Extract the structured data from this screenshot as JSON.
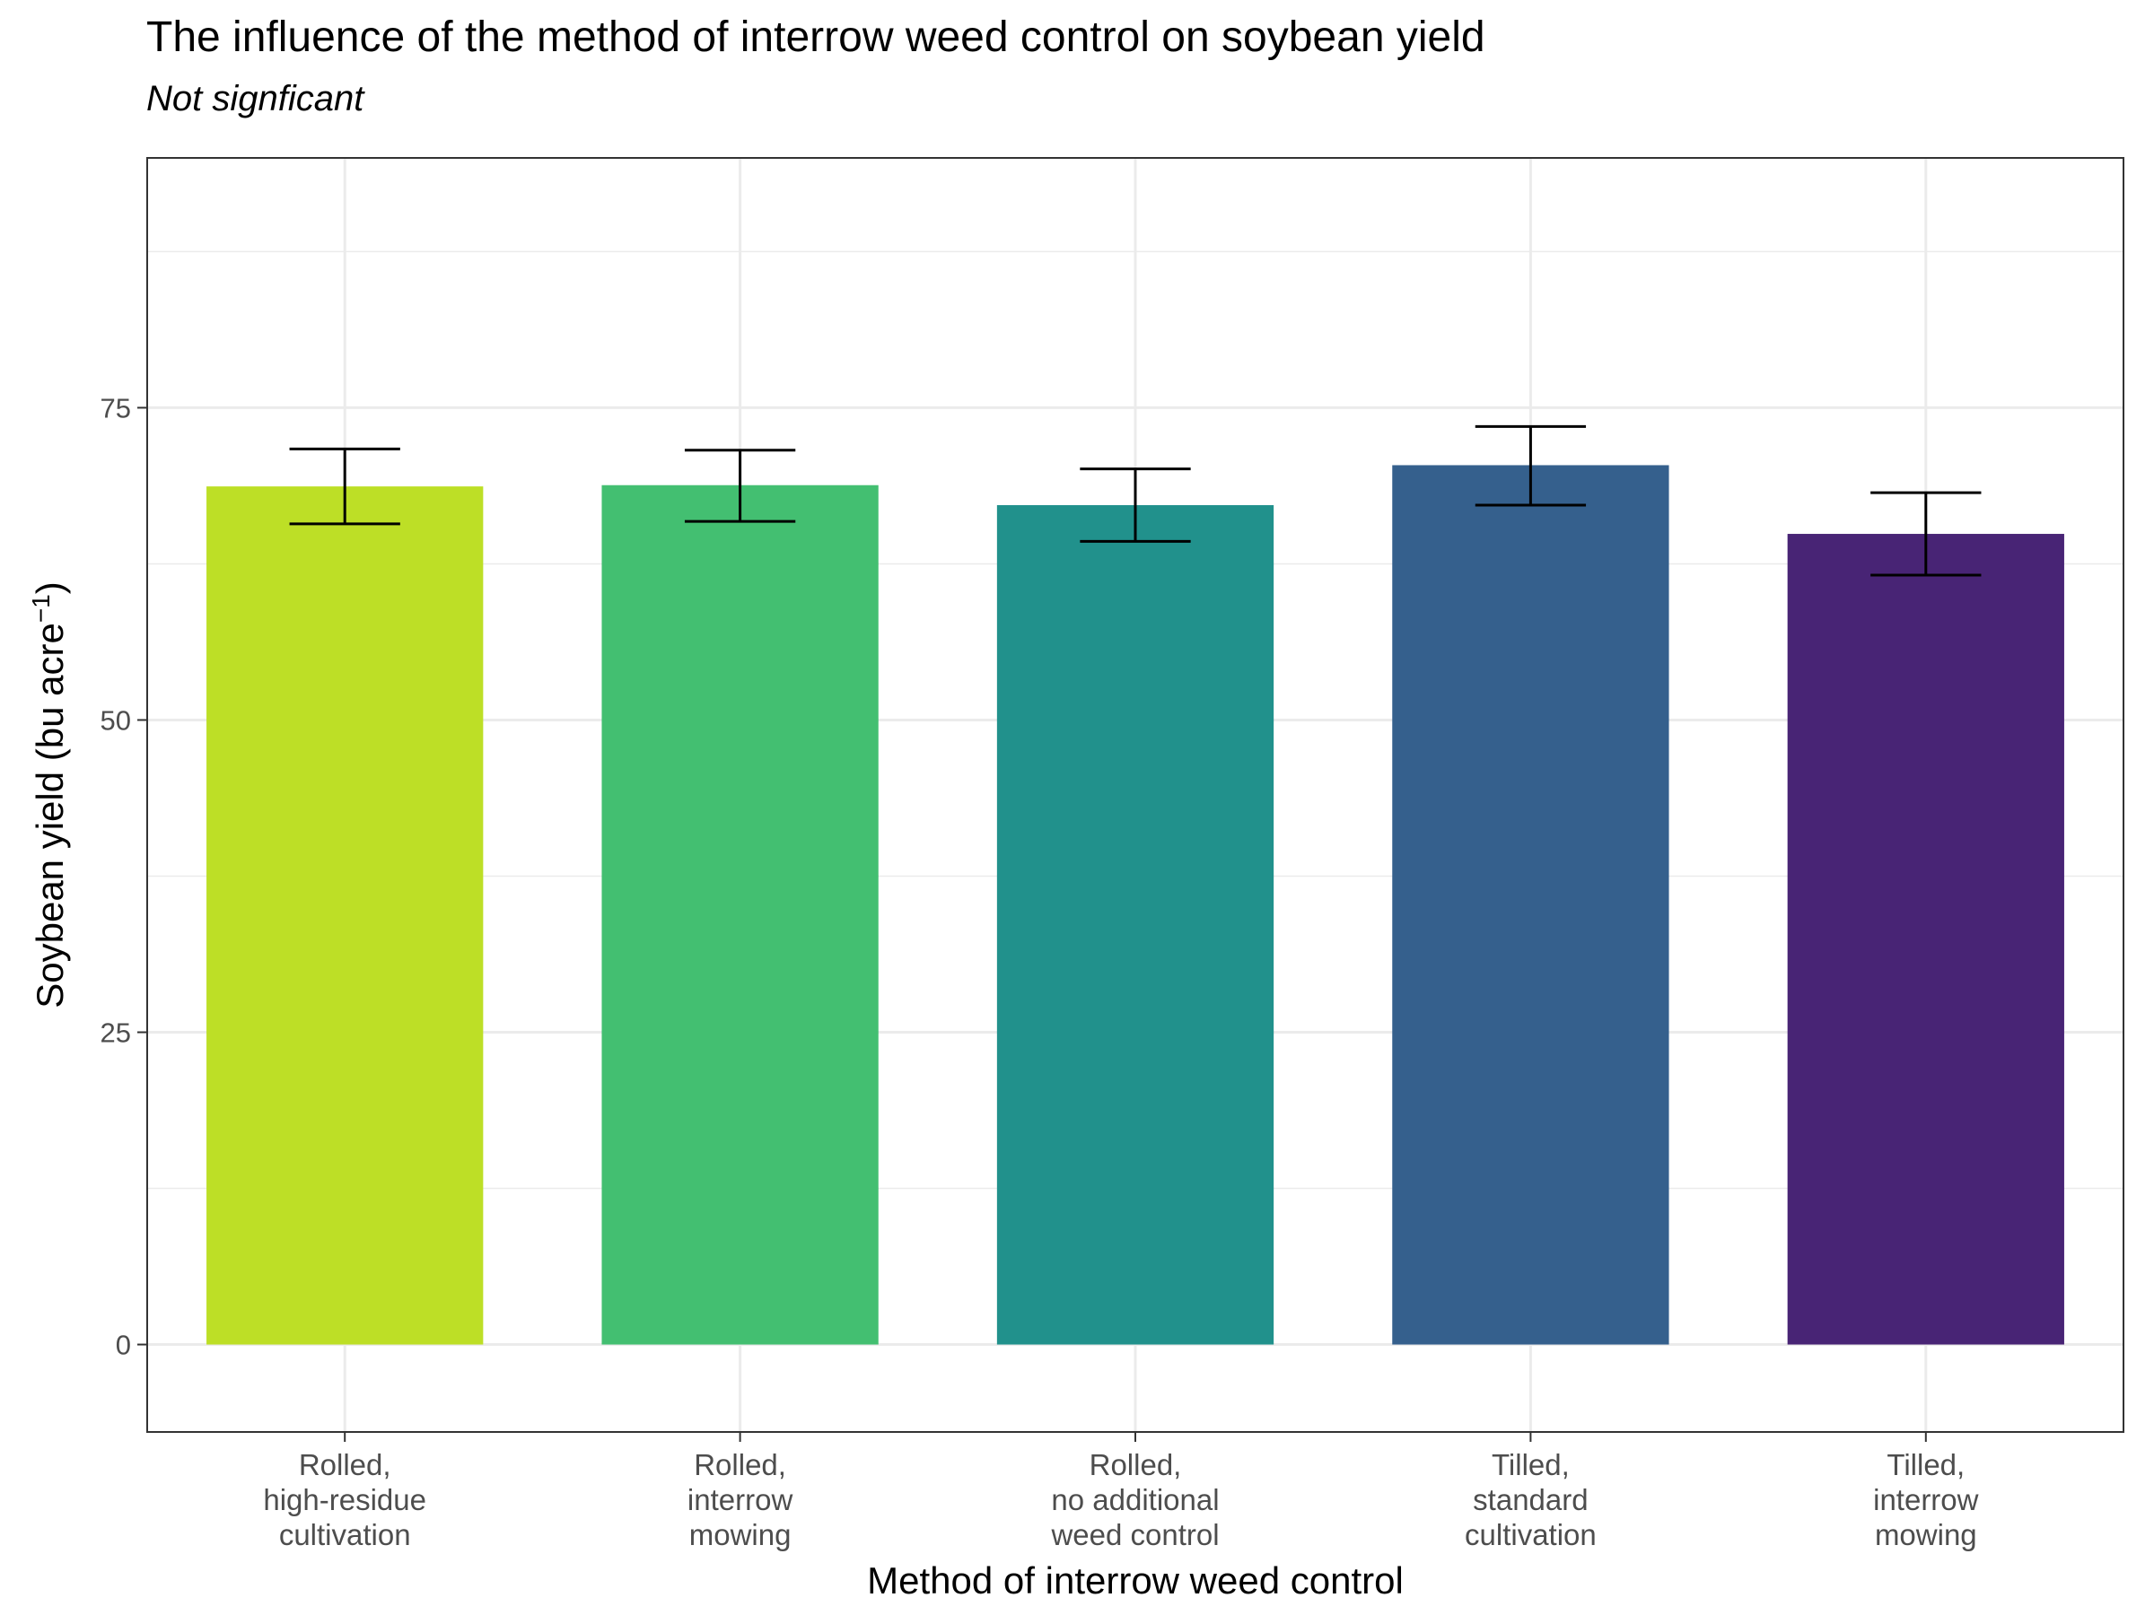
{
  "chart_data": {
    "type": "bar",
    "title": "The influence of the method of interrow weed control on soybean yield",
    "subtitle": "Not signficant",
    "xlabel": "Method of interrow weed control",
    "ylabel": {
      "main": "Soybean yield (bu acre",
      "superscript": "−1",
      "close": ")"
    },
    "ylim": [
      -7,
      95
    ],
    "yticks": [
      0,
      25,
      50,
      75
    ],
    "yticks_labels": [
      "0",
      "25",
      "50",
      "75"
    ],
    "grid": true,
    "categories": [
      {
        "label_lines": [
          "Rolled,",
          "high-residue",
          "cultivation"
        ]
      },
      {
        "label_lines": [
          "Rolled,",
          "interrow",
          "mowing"
        ]
      },
      {
        "label_lines": [
          "Rolled,",
          "no additional",
          "weed control"
        ]
      },
      {
        "label_lines": [
          "Tilled,",
          "standard",
          "cultivation"
        ]
      },
      {
        "label_lines": [
          "Tilled,",
          "interrow",
          "mowing"
        ]
      }
    ],
    "values": [
      68.7,
      68.8,
      67.2,
      70.4,
      64.9
    ],
    "error_low": [
      65.7,
      65.9,
      64.3,
      67.2,
      61.6
    ],
    "error_high": [
      71.7,
      71.6,
      70.1,
      73.5,
      68.2
    ],
    "colors": [
      "#bddf26",
      "#43bf71",
      "#21918c",
      "#35608d",
      "#482475"
    ]
  }
}
